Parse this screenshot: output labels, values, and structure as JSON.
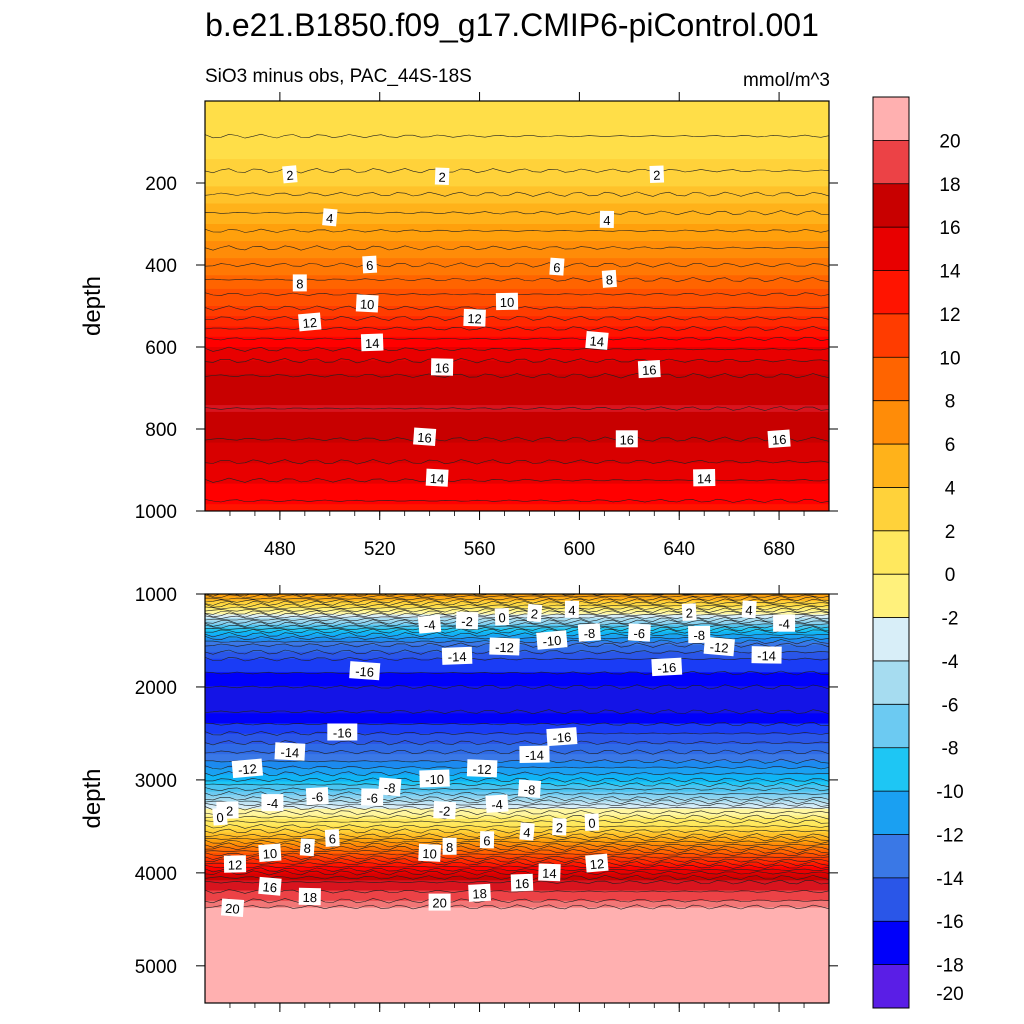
{
  "figure": {
    "title": "b.e21.B1850.f09_g17.CMIP6-piControl.001",
    "subtitle_left": "SiO3 minus obs, PAC_44S-18S",
    "subtitle_right": "mmol/m^3"
  },
  "colors": {
    "frame": "#000000",
    "contour_line": "#222222",
    "label_box": "#ffffff"
  },
  "chart_data": [
    {
      "type": "heatmap",
      "panel": "upper",
      "xlabel": "",
      "ylabel": "depth",
      "xlim": [
        450,
        700
      ],
      "ylim": [
        0,
        1000
      ],
      "y_inverted": true,
      "x_ticks": [
        480,
        520,
        560,
        600,
        640,
        680
      ],
      "x_tick_labels": [
        "480",
        "520",
        "560",
        "600",
        "640",
        "680"
      ],
      "y_ticks": [
        200,
        400,
        600,
        800,
        1000
      ],
      "y_tick_labels": [
        "200",
        "400",
        "600",
        "800",
        "1000"
      ],
      "profile": {
        "depth": [
          0,
          120,
          170,
          200,
          250,
          300,
          350,
          400,
          450,
          500,
          550,
          600,
          650,
          700,
          750,
          800,
          850,
          900,
          950,
          1000
        ],
        "value": [
          0.5,
          1.2,
          2.0,
          2.4,
          3.5,
          4.6,
          5.8,
          7.0,
          8.4,
          9.8,
          11.8,
          13.8,
          15.6,
          16.6,
          17.0,
          16.4,
          15.6,
          14.6,
          13.4,
          12.6
        ]
      },
      "contour_labels": [
        {
          "x": 484,
          "y": 180,
          "text": "2"
        },
        {
          "x": 545,
          "y": 185,
          "text": "2"
        },
        {
          "x": 631,
          "y": 180,
          "text": "2"
        },
        {
          "x": 500,
          "y": 285,
          "text": "4"
        },
        {
          "x": 611,
          "y": 290,
          "text": "4"
        },
        {
          "x": 516,
          "y": 400,
          "text": "6"
        },
        {
          "x": 591,
          "y": 405,
          "text": "6"
        },
        {
          "x": 488,
          "y": 445,
          "text": "8"
        },
        {
          "x": 612,
          "y": 435,
          "text": "8"
        },
        {
          "x": 515,
          "y": 495,
          "text": "10"
        },
        {
          "x": 571,
          "y": 490,
          "text": "10"
        },
        {
          "x": 492,
          "y": 540,
          "text": "12"
        },
        {
          "x": 558,
          "y": 530,
          "text": "12"
        },
        {
          "x": 517,
          "y": 590,
          "text": "14"
        },
        {
          "x": 607,
          "y": 585,
          "text": "14"
        },
        {
          "x": 545,
          "y": 650,
          "text": "16"
        },
        {
          "x": 628,
          "y": 655,
          "text": "16"
        },
        {
          "x": 538,
          "y": 820,
          "text": "16"
        },
        {
          "x": 619,
          "y": 825,
          "text": "16"
        },
        {
          "x": 680,
          "y": 825,
          "text": "16"
        },
        {
          "x": 543,
          "y": 920,
          "text": "14"
        },
        {
          "x": 650,
          "y": 920,
          "text": "14"
        }
      ]
    },
    {
      "type": "heatmap",
      "panel": "lower",
      "xlabel": "",
      "ylabel": "depth",
      "xlim": [
        450,
        700
      ],
      "ylim": [
        1000,
        5400
      ],
      "y_inverted": true,
      "x_ticks": [
        480,
        520,
        560,
        600,
        640,
        680
      ],
      "y_ticks": [
        1000,
        2000,
        3000,
        4000,
        5000
      ],
      "y_tick_labels": [
        "1000",
        "2000",
        "3000",
        "4000",
        "5000"
      ],
      "profile": {
        "depth": [
          1000,
          1100,
          1200,
          1300,
          1400,
          1550,
          1700,
          1850,
          2000,
          2200,
          2400,
          2600,
          2800,
          3000,
          3200,
          3300,
          3400,
          3500,
          3600,
          3700,
          3800,
          3900,
          4000,
          4100,
          4200,
          4300,
          4400,
          5400
        ],
        "value": [
          6,
          2,
          -2,
          -6,
          -10,
          -14,
          -16,
          -17,
          -18,
          -18.5,
          -17,
          -15,
          -13,
          -10,
          -6,
          -3,
          -1,
          1,
          3,
          6,
          9,
          12,
          15,
          17,
          18,
          19,
          20.5,
          20.5
        ]
      },
      "contour_labels": [
        {
          "x": 540,
          "y": 1330,
          "text": "-4"
        },
        {
          "x": 555,
          "y": 1290,
          "text": "-2"
        },
        {
          "x": 569,
          "y": 1250,
          "text": "0"
        },
        {
          "x": 582,
          "y": 1210,
          "text": "2"
        },
        {
          "x": 597,
          "y": 1170,
          "text": "4"
        },
        {
          "x": 644,
          "y": 1200,
          "text": "2"
        },
        {
          "x": 668,
          "y": 1170,
          "text": "4"
        },
        {
          "x": 682,
          "y": 1320,
          "text": "-4"
        },
        {
          "x": 604,
          "y": 1420,
          "text": "-8"
        },
        {
          "x": 624,
          "y": 1420,
          "text": "-6"
        },
        {
          "x": 648,
          "y": 1440,
          "text": "-8"
        },
        {
          "x": 589,
          "y": 1500,
          "text": "-10"
        },
        {
          "x": 570,
          "y": 1570,
          "text": "-12"
        },
        {
          "x": 551,
          "y": 1670,
          "text": "-14"
        },
        {
          "x": 656,
          "y": 1570,
          "text": "-12"
        },
        {
          "x": 675,
          "y": 1660,
          "text": "-14"
        },
        {
          "x": 635,
          "y": 1790,
          "text": "-16"
        },
        {
          "x": 514,
          "y": 1830,
          "text": "-16"
        },
        {
          "x": 505,
          "y": 2490,
          "text": "-16"
        },
        {
          "x": 593,
          "y": 2540,
          "text": "-16"
        },
        {
          "x": 484,
          "y": 2700,
          "text": "-14"
        },
        {
          "x": 582,
          "y": 2730,
          "text": "-14"
        },
        {
          "x": 467,
          "y": 2880,
          "text": "-12"
        },
        {
          "x": 561,
          "y": 2880,
          "text": "-12"
        },
        {
          "x": 542,
          "y": 2990,
          "text": "-10"
        },
        {
          "x": 524,
          "y": 3080,
          "text": "-8"
        },
        {
          "x": 517,
          "y": 3190,
          "text": "-6"
        },
        {
          "x": 495,
          "y": 3180,
          "text": "-6"
        },
        {
          "x": 580,
          "y": 3100,
          "text": "-8"
        },
        {
          "x": 477,
          "y": 3250,
          "text": "-4"
        },
        {
          "x": 567,
          "y": 3260,
          "text": "-4"
        },
        {
          "x": 546,
          "y": 3330,
          "text": "-2"
        },
        {
          "x": 459,
          "y": 3330,
          "text": "-2"
        },
        {
          "x": 456,
          "y": 3400,
          "text": "0"
        },
        {
          "x": 592,
          "y": 3510,
          "text": "2"
        },
        {
          "x": 605,
          "y": 3460,
          "text": "0"
        },
        {
          "x": 579,
          "y": 3560,
          "text": "4"
        },
        {
          "x": 563,
          "y": 3650,
          "text": "6"
        },
        {
          "x": 501,
          "y": 3630,
          "text": "6"
        },
        {
          "x": 491,
          "y": 3730,
          "text": "8"
        },
        {
          "x": 548,
          "y": 3720,
          "text": "8"
        },
        {
          "x": 476,
          "y": 3790,
          "text": "10"
        },
        {
          "x": 540,
          "y": 3790,
          "text": "10"
        },
        {
          "x": 462,
          "y": 3910,
          "text": "12"
        },
        {
          "x": 607,
          "y": 3900,
          "text": "12"
        },
        {
          "x": 588,
          "y": 4000,
          "text": "14"
        },
        {
          "x": 577,
          "y": 4110,
          "text": "16"
        },
        {
          "x": 476,
          "y": 4150,
          "text": "16"
        },
        {
          "x": 492,
          "y": 4260,
          "text": "18"
        },
        {
          "x": 560,
          "y": 4220,
          "text": "18"
        },
        {
          "x": 461,
          "y": 4380,
          "text": "20"
        },
        {
          "x": 544,
          "y": 4320,
          "text": "20"
        }
      ]
    }
  ],
  "colorbar": {
    "levels": [
      -20,
      -18,
      -16,
      -14,
      -12,
      -10,
      -8,
      -6,
      -4,
      -2,
      0,
      2,
      4,
      6,
      8,
      10,
      12,
      14,
      16,
      18,
      20
    ],
    "labels": [
      "-20",
      "-18",
      "-16",
      "-14",
      "-12",
      "-10",
      "-8",
      "-6",
      "-4",
      "-2",
      "0",
      "2",
      "4",
      "6",
      "8",
      "10",
      "12",
      "14",
      "16",
      "18",
      "20"
    ],
    "colors": [
      "#8a2be2",
      "#5a1ee6",
      "#1414e6",
      "#0000fa",
      "#1a3cf5",
      "#2a56e8",
      "#2f6ae6",
      "#3a78e6",
      "#1c8af0",
      "#1aa0f2",
      "#10b4f5",
      "#1ec6f4",
      "#4cc4f0",
      "#6ccaf2",
      "#8ad2f0",
      "#a6dcf0",
      "#c2e4f4",
      "#d8eef8",
      "#fff6a0",
      "#fff17c",
      "#ffe85e",
      "#ffde48",
      "#ffd23a",
      "#ffc22a",
      "#ffb21a",
      "#ffa00c",
      "#ff8c08",
      "#ff7804",
      "#ff6400",
      "#ff5000",
      "#ff3c00",
      "#ff2800",
      "#ff1400",
      "#ff0000",
      "#e80000",
      "#d80000",
      "#c80000",
      "#d8141e",
      "#ec4246",
      "#f27676",
      "#ffb0b0"
    ]
  }
}
